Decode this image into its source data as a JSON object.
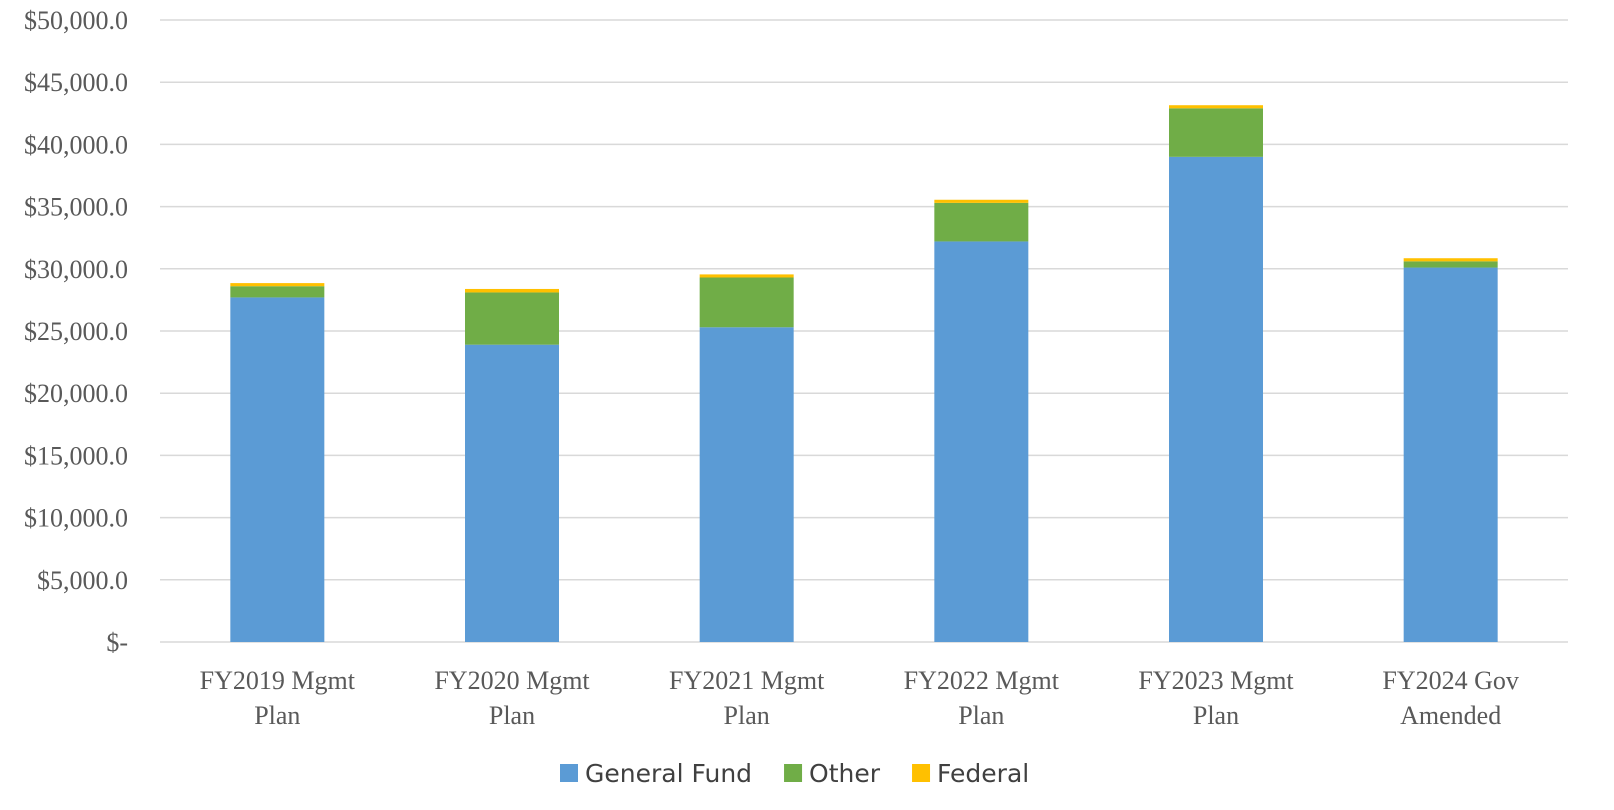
{
  "chart_data": {
    "type": "bar",
    "stacked": true,
    "categories": [
      [
        "FY2019 Mgmt",
        "Plan"
      ],
      [
        "FY2020 Mgmt",
        "Plan"
      ],
      [
        "FY2021 Mgmt",
        "Plan"
      ],
      [
        "FY2022 Mgmt",
        "Plan"
      ],
      [
        "FY2023 Mgmt",
        "Plan"
      ],
      [
        "FY2024 Gov",
        "Amended"
      ]
    ],
    "series": [
      {
        "name": "General Fund",
        "color": "#5b9bd5",
        "values": [
          27700,
          23900,
          25300,
          32200,
          39000,
          30100
        ]
      },
      {
        "name": "Other",
        "color": "#70ad47",
        "values": [
          900,
          4200,
          4000,
          3100,
          3900,
          500
        ]
      },
      {
        "name": "Federal",
        "color": "#ffc000",
        "values": [
          250,
          280,
          250,
          250,
          250,
          250
        ]
      }
    ],
    "ylim": [
      0,
      50000
    ],
    "yticks": [
      0,
      5000,
      10000,
      15000,
      20000,
      25000,
      30000,
      35000,
      40000,
      45000,
      50000
    ],
    "ytick_labels": [
      "$-",
      "$5,000.0",
      "$10,000.0",
      "$15,000.0",
      "$20,000.0",
      "$25,000.0",
      "$30,000.0",
      "$35,000.0",
      "$40,000.0",
      "$45,000.0",
      "$50,000.0"
    ],
    "title": "",
    "xlabel": "",
    "ylabel": "",
    "grid": true,
    "legend": "bottom"
  }
}
